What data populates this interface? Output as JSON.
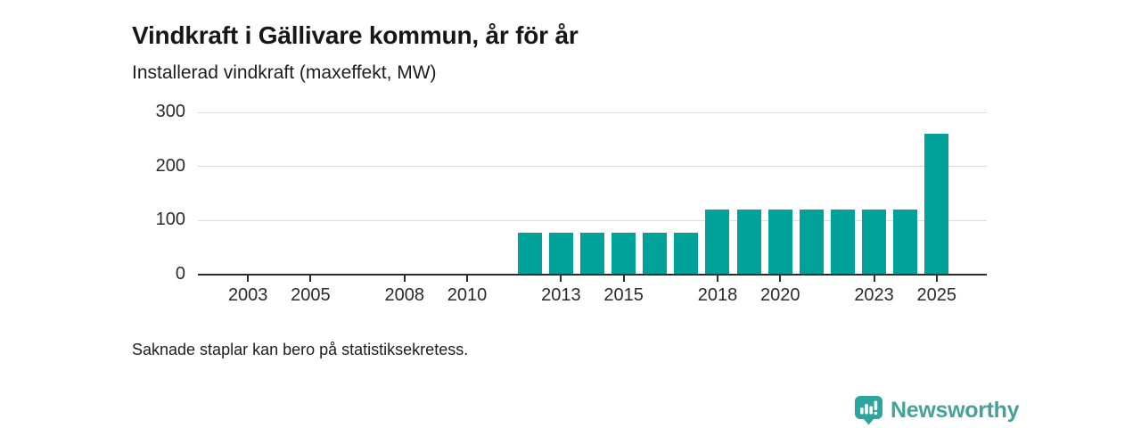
{
  "header": {
    "title": "Vindkraft i Gällivare kommun, år för år",
    "subtitle": "Installerad vindkraft (maxeffekt, MW)"
  },
  "footer": {
    "note": "Saknade staplar kan bero på statistiksekretess.",
    "brand": {
      "name": "Newsworthy",
      "icon": "newsworthy-chart-bubble-icon"
    }
  },
  "colors": {
    "bar": "#00a29a",
    "brand_text": "#45a29b",
    "brand_icon": "#2ca59c",
    "axis": "#2b2b2b",
    "grid": "#dcdcdc",
    "text": "#1d1d1d"
  },
  "chart_data": {
    "type": "bar",
    "title": "Vindkraft i Gällivare kommun, år för år",
    "ylabel": "Installerad vindkraft (maxeffekt, MW)",
    "unit": "MW",
    "ylim": [
      0,
      300
    ],
    "y_ticks": [
      0,
      100,
      200,
      300
    ],
    "x_domain": [
      2001.4,
      2026.6
    ],
    "x_ticks": [
      2003,
      2005,
      2008,
      2010,
      2013,
      2015,
      2018,
      2020,
      2023,
      2025
    ],
    "grid": "horizontal-only",
    "legend": "none",
    "annotation": "Saknade staplar kan bero på statistiksekretess.",
    "bars": [
      {
        "year": 2012,
        "value": 78
      },
      {
        "year": 2013,
        "value": 78
      },
      {
        "year": 2014,
        "value": 78
      },
      {
        "year": 2015,
        "value": 78
      },
      {
        "year": 2016,
        "value": 78
      },
      {
        "year": 2017,
        "value": 78
      },
      {
        "year": 2018,
        "value": 120
      },
      {
        "year": 2019,
        "value": 120
      },
      {
        "year": 2020,
        "value": 120
      },
      {
        "year": 2021,
        "value": 120
      },
      {
        "year": 2022,
        "value": 120
      },
      {
        "year": 2023,
        "value": 120
      },
      {
        "year": 2024,
        "value": 120
      },
      {
        "year": 2025,
        "value": 261
      }
    ]
  }
}
